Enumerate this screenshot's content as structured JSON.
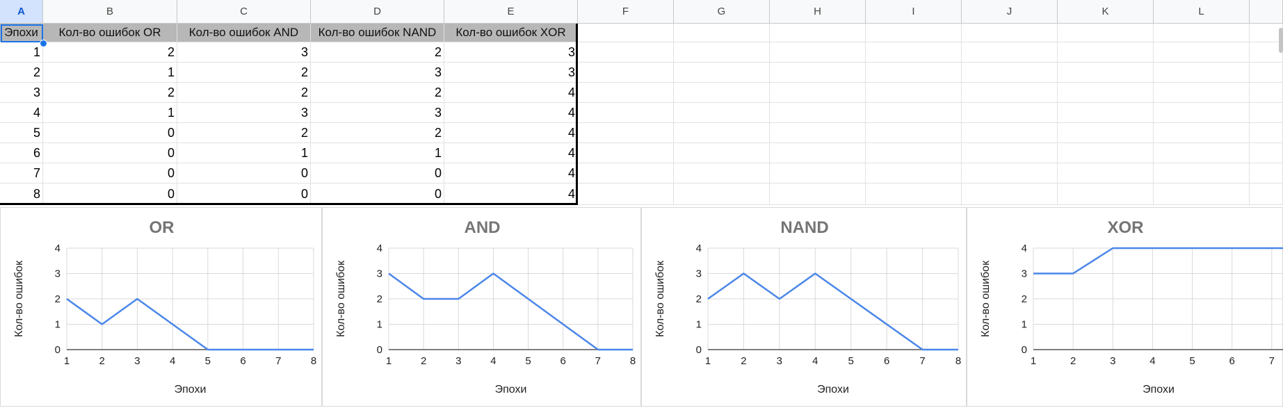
{
  "columns": [
    "A",
    "B",
    "C",
    "D",
    "E",
    "F",
    "G",
    "H",
    "I",
    "J",
    "K",
    "L"
  ],
  "selected_column": "A",
  "table": {
    "headers": [
      "Эпохи",
      "Кол-во ошибок OR",
      "Кол-во ошибок AND",
      "Кол-во ошибок NAND",
      "Кол-во ошибок XOR"
    ],
    "rows": [
      [
        "1",
        "2",
        "3",
        "2",
        "3"
      ],
      [
        "2",
        "1",
        "2",
        "3",
        "3"
      ],
      [
        "3",
        "2",
        "2",
        "2",
        "4"
      ],
      [
        "4",
        "1",
        "3",
        "3",
        "4"
      ],
      [
        "5",
        "0",
        "2",
        "2",
        "4"
      ],
      [
        "6",
        "0",
        "1",
        "1",
        "4"
      ],
      [
        "7",
        "0",
        "0",
        "0",
        "4"
      ],
      [
        "8",
        "0",
        "0",
        "0",
        "4"
      ]
    ]
  },
  "colors": {
    "line": "#4a86e8",
    "title": "#757575",
    "header_fill": "#b7b7b7",
    "selection": "#1a73e8"
  },
  "chart_data": [
    {
      "type": "line",
      "title": "OR",
      "xlabel": "Эпохи",
      "ylabel": "Кол-во ошибок",
      "x": [
        1,
        2,
        3,
        4,
        5,
        6,
        7,
        8
      ],
      "series": [
        {
          "values": [
            2,
            1,
            2,
            1,
            0,
            0,
            0,
            0
          ]
        }
      ],
      "xlim": [
        1,
        8
      ],
      "ylim": [
        0,
        4
      ],
      "xticks": [
        1,
        2,
        3,
        4,
        5,
        6,
        7,
        8
      ],
      "yticks": [
        0,
        1,
        2,
        3,
        4
      ],
      "grid": true
    },
    {
      "type": "line",
      "title": "AND",
      "xlabel": "Эпохи",
      "ylabel": "Кол-во ошибок",
      "x": [
        1,
        2,
        3,
        4,
        5,
        6,
        7,
        8
      ],
      "series": [
        {
          "values": [
            3,
            2,
            2,
            3,
            2,
            1,
            0,
            0
          ]
        }
      ],
      "xlim": [
        1,
        8
      ],
      "ylim": [
        0,
        4
      ],
      "xticks": [
        1,
        2,
        3,
        4,
        5,
        6,
        7,
        8
      ],
      "yticks": [
        0,
        1,
        2,
        3,
        4
      ],
      "grid": true
    },
    {
      "type": "line",
      "title": "NAND",
      "xlabel": "Эпохи",
      "ylabel": "Кол-во ошибок",
      "x": [
        1,
        2,
        3,
        4,
        5,
        6,
        7,
        8
      ],
      "series": [
        {
          "values": [
            2,
            3,
            2,
            3,
            2,
            1,
            0,
            0
          ]
        }
      ],
      "xlim": [
        1,
        8
      ],
      "ylim": [
        0,
        4
      ],
      "xticks": [
        1,
        2,
        3,
        4,
        5,
        6,
        7,
        8
      ],
      "yticks": [
        0,
        1,
        2,
        3,
        4
      ],
      "grid": true
    },
    {
      "type": "line",
      "title": "XOR",
      "xlabel": "Эпохи",
      "ylabel": "Кол-во ошибок",
      "x": [
        1,
        2,
        3,
        4,
        5,
        6,
        7,
        8
      ],
      "series": [
        {
          "values": [
            3,
            3,
            4,
            4,
            4,
            4,
            4,
            4
          ]
        }
      ],
      "xlim": [
        1,
        8
      ],
      "ylim": [
        0,
        4
      ],
      "xticks": [
        1,
        2,
        3,
        4,
        5,
        6,
        7
      ],
      "yticks": [
        0,
        1,
        2,
        3,
        4
      ],
      "grid": true
    }
  ]
}
